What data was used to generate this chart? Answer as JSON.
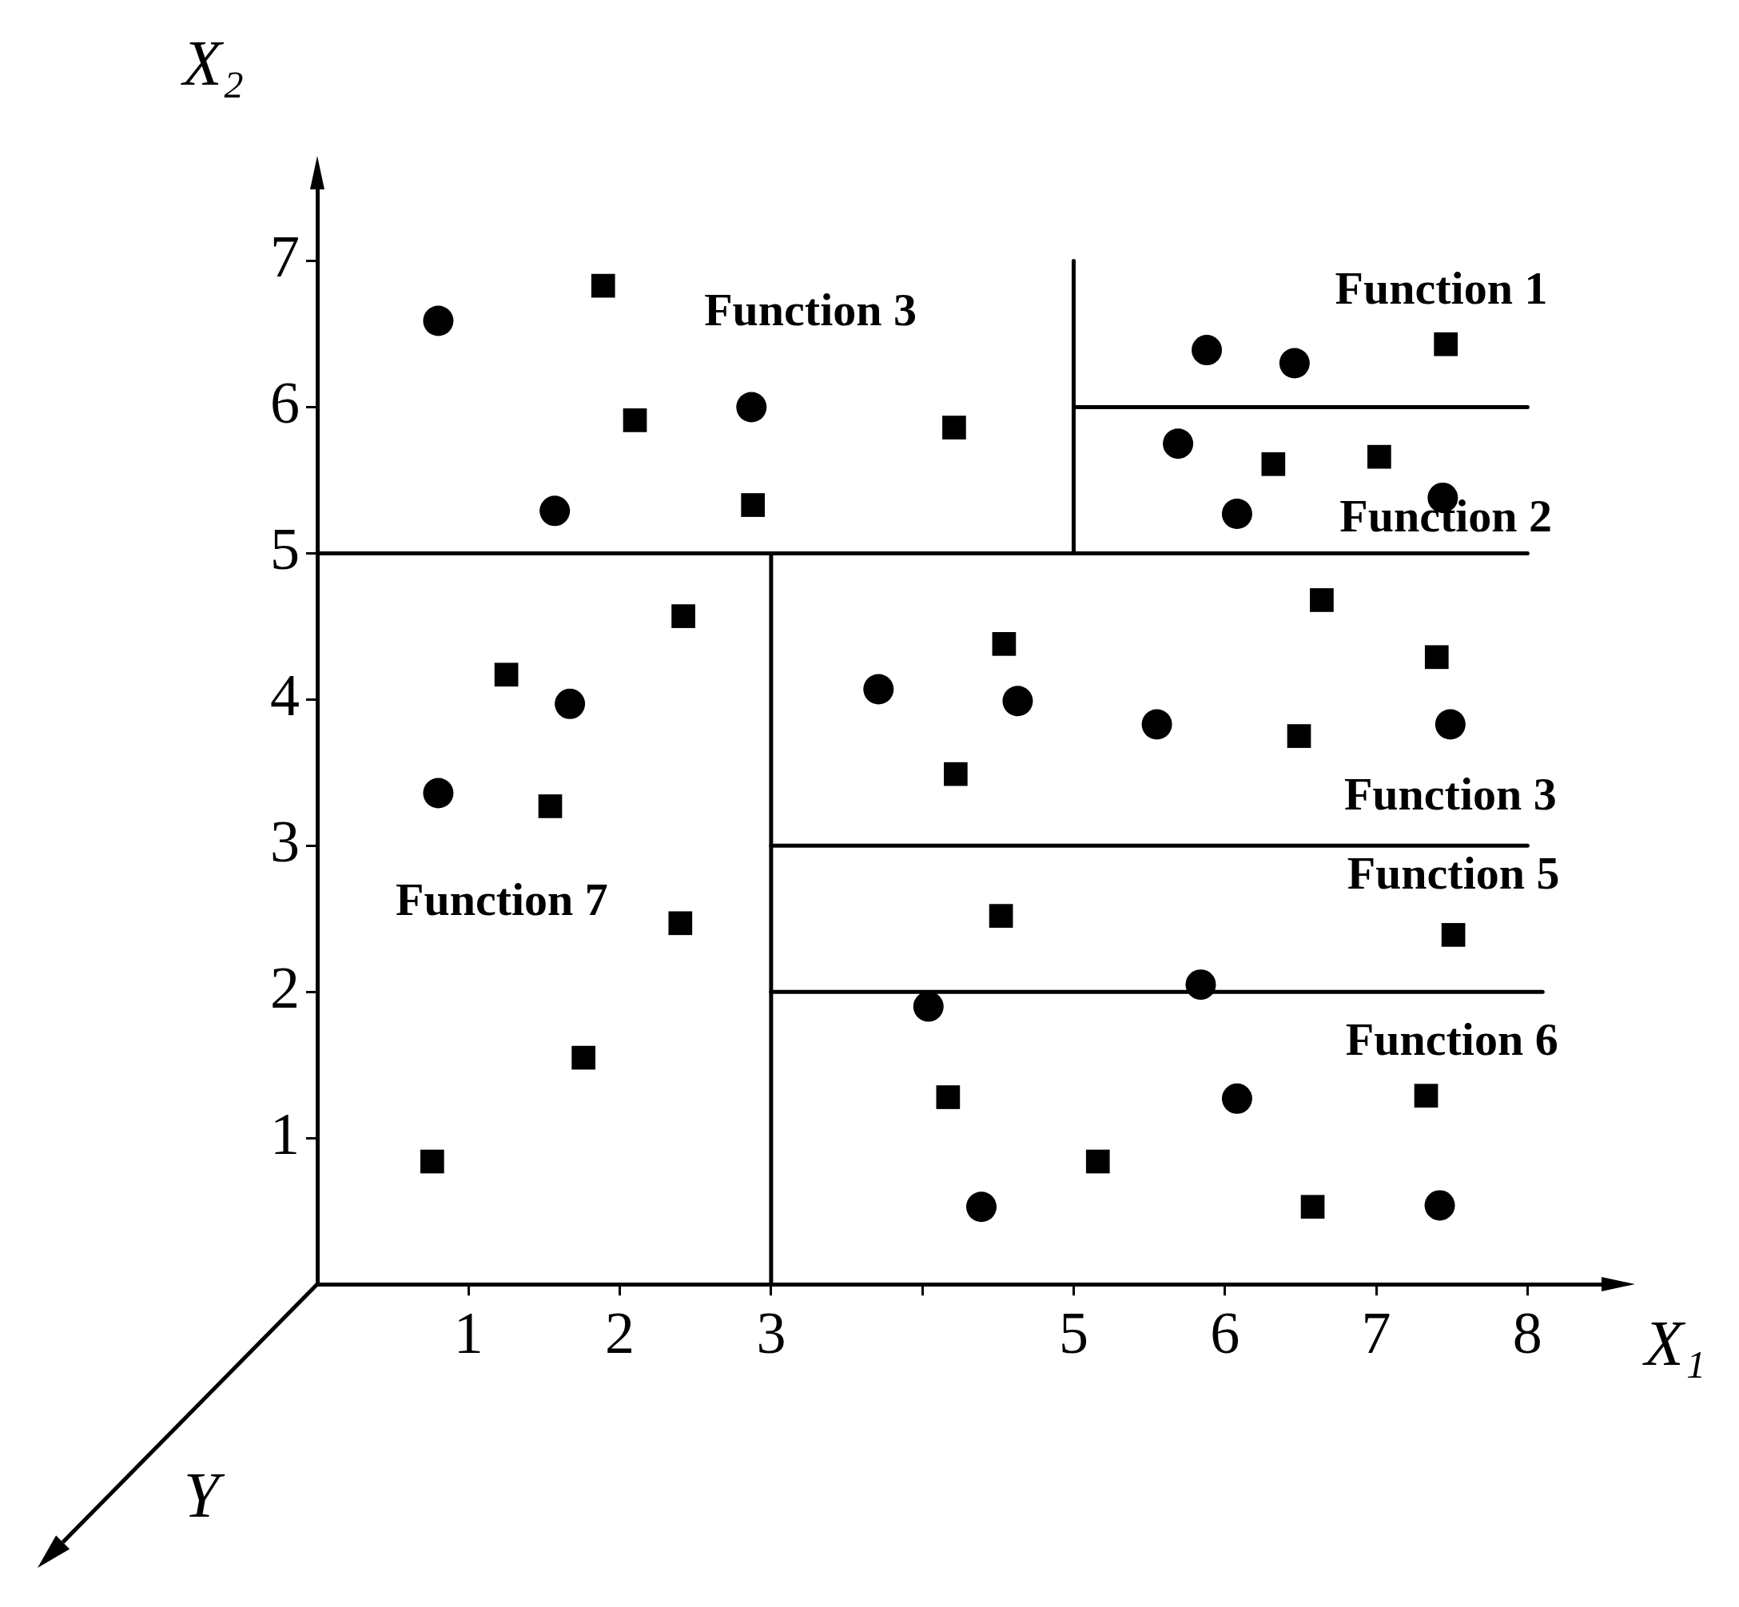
{
  "chart_data": {
    "type": "scatter",
    "xlabel": "X₁",
    "ylabel": "X₂",
    "xlim": [
      0,
      8.5
    ],
    "ylim": [
      0,
      7.5
    ],
    "xticks": [
      1,
      2,
      3,
      {
        "value": 4,
        "label": null
      },
      5,
      6,
      7,
      8
    ],
    "yticks": [
      1,
      2,
      3,
      4,
      5,
      6,
      7
    ],
    "grid": false,
    "legend": false,
    "series": [
      {
        "marker": "circle",
        "color": "#000000",
        "x": [
          0.8,
          2.87,
          1.57,
          5.88,
          6.46,
          5.69,
          6.08,
          7.44,
          3.71,
          4.63,
          5.55,
          7.49,
          1.67,
          0.8,
          4.04,
          5.84,
          6.08,
          4.39,
          7.42
        ],
        "values": [
          6.59,
          6.0,
          5.29,
          6.39,
          6.3,
          5.75,
          5.27,
          5.38,
          4.07,
          3.99,
          3.83,
          3.83,
          3.97,
          3.36,
          1.9,
          2.05,
          1.27,
          0.53,
          0.54
        ]
      },
      {
        "marker": "square",
        "color": "#000000",
        "x": [
          1.89,
          2.1,
          4.21,
          2.88,
          7.46,
          6.32,
          7.02,
          2.42,
          1.25,
          1.54,
          4.54,
          6.64,
          7.4,
          6.49,
          4.22,
          2.4,
          4.52,
          7.51,
          1.76,
          0.76,
          4.17,
          5.16,
          7.33,
          6.58
        ],
        "values": [
          6.83,
          5.91,
          5.86,
          5.33,
          6.43,
          5.61,
          5.66,
          4.57,
          4.17,
          3.27,
          4.38,
          4.68,
          4.29,
          3.75,
          3.49,
          2.47,
          2.52,
          2.39,
          1.55,
          0.84,
          1.28,
          0.84,
          1.29,
          0.53
        ]
      },
      {
        "type": "line",
        "marker": "none",
        "line_style": "solid",
        "color": "#000000",
        "x": [
          0,
          8
        ],
        "values": [
          5,
          5
        ]
      },
      {
        "type": "line",
        "marker": "none",
        "line_style": "solid",
        "color": "#000000",
        "x": [
          3,
          3
        ],
        "values": [
          0,
          5
        ]
      },
      {
        "type": "line",
        "marker": "none",
        "line_style": "solid",
        "color": "#000000",
        "x": [
          5,
          5
        ],
        "values": [
          5,
          7
        ]
      },
      {
        "type": "line",
        "marker": "none",
        "line_style": "solid",
        "color": "#000000",
        "x": [
          5,
          8
        ],
        "values": [
          6,
          6
        ]
      },
      {
        "type": "line",
        "marker": "none",
        "line_style": "solid",
        "color": "#000000",
        "x": [
          3,
          8
        ],
        "values": [
          3,
          3
        ]
      },
      {
        "type": "line",
        "marker": "none",
        "line_style": "solid",
        "color": "#000000",
        "x": [
          3,
          8.1
        ],
        "values": [
          2,
          2
        ]
      }
    ],
    "annotations": [
      "Function 3",
      "Function 1",
      "Function 2",
      "Function 3",
      "Function 5",
      "Function 7",
      "Function 6",
      "Y"
    ]
  }
}
